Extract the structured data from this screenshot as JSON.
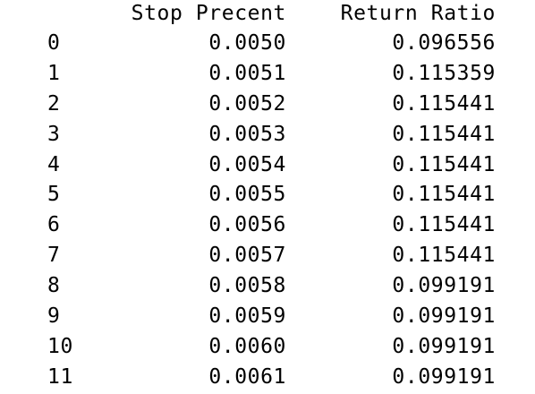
{
  "dataframe": {
    "columns": [
      "Stop Precent",
      "Return Ratio"
    ],
    "rows": [
      {
        "index": "0",
        "stop_precent": "0.0050",
        "return_ratio": "0.096556"
      },
      {
        "index": "1",
        "stop_precent": "0.0051",
        "return_ratio": "0.115359"
      },
      {
        "index": "2",
        "stop_precent": "0.0052",
        "return_ratio": "0.115441"
      },
      {
        "index": "3",
        "stop_precent": "0.0053",
        "return_ratio": "0.115441"
      },
      {
        "index": "4",
        "stop_precent": "0.0054",
        "return_ratio": "0.115441"
      },
      {
        "index": "5",
        "stop_precent": "0.0055",
        "return_ratio": "0.115441"
      },
      {
        "index": "6",
        "stop_precent": "0.0056",
        "return_ratio": "0.115441"
      },
      {
        "index": "7",
        "stop_precent": "0.0057",
        "return_ratio": "0.115441"
      },
      {
        "index": "8",
        "stop_precent": "0.0058",
        "return_ratio": "0.099191"
      },
      {
        "index": "9",
        "stop_precent": "0.0059",
        "return_ratio": "0.099191"
      },
      {
        "index": "10",
        "stop_precent": "0.0060",
        "return_ratio": "0.099191"
      },
      {
        "index": "11",
        "stop_precent": "0.0061",
        "return_ratio": "0.099191"
      }
    ]
  }
}
